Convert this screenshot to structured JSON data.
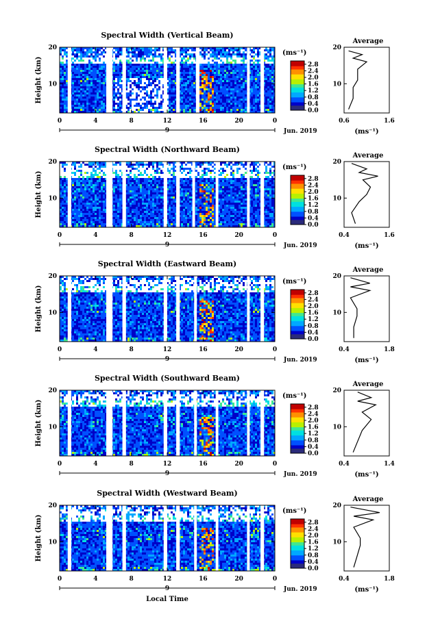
{
  "chart_data": [
    {
      "type": "heatmap",
      "title": "Spectral Width (Vertical Beam)",
      "profile_title": "Average",
      "profile_xticks": [
        "0.6",
        "1.6"
      ],
      "profile_xlim": [
        0.6,
        1.6
      ],
      "profile": [
        [
          0.7,
          3
        ],
        [
          0.8,
          6
        ],
        [
          0.8,
          9
        ],
        [
          0.9,
          11
        ],
        [
          0.9,
          14
        ],
        [
          1.1,
          16
        ],
        [
          0.8,
          17
        ],
        [
          1.0,
          18
        ],
        [
          0.7,
          19
        ]
      ],
      "gaps": [
        [
          0.9,
          1.3
        ],
        [
          5.2,
          5.9
        ],
        [
          7.0,
          7.4
        ],
        [
          11.6,
          12.0
        ],
        [
          13.0,
          13.4
        ],
        [
          15.2,
          15.6
        ],
        [
          20.9,
          21.2
        ],
        [
          22.4,
          22.8
        ]
      ]
    },
    {
      "type": "heatmap",
      "title": "Spectral Width (Northward Beam)",
      "profile_title": "Average",
      "profile_xticks": [
        "0.4",
        "1.6"
      ],
      "profile_xlim": [
        0.4,
        1.6
      ],
      "profile": [
        [
          0.7,
          3
        ],
        [
          0.6,
          6
        ],
        [
          0.8,
          9
        ],
        [
          1.0,
          11
        ],
        [
          1.1,
          13
        ],
        [
          0.9,
          15
        ],
        [
          1.3,
          16
        ],
        [
          0.8,
          17
        ],
        [
          1.0,
          18
        ],
        [
          0.6,
          19.5
        ]
      ],
      "gaps": [
        [
          0.9,
          1.3
        ],
        [
          5.2,
          5.9
        ],
        [
          7.0,
          7.4
        ],
        [
          11.6,
          12.0
        ],
        [
          13.0,
          13.4
        ],
        [
          14.8,
          15.1
        ],
        [
          17.4,
          17.7
        ],
        [
          20.9,
          21.2
        ],
        [
          22.4,
          22.8
        ]
      ]
    },
    {
      "type": "heatmap",
      "title": "Spectral Width (Eastward Beam)",
      "profile_title": "Average",
      "profile_xticks": [
        "0.4",
        "1.8"
      ],
      "profile_xlim": [
        0.4,
        1.8
      ],
      "profile": [
        [
          0.7,
          3
        ],
        [
          0.7,
          6
        ],
        [
          0.8,
          9
        ],
        [
          0.8,
          11
        ],
        [
          0.6,
          14
        ],
        [
          1.2,
          16
        ],
        [
          0.6,
          17
        ],
        [
          1.2,
          18
        ],
        [
          0.6,
          19.5
        ]
      ],
      "gaps": [
        [
          0.9,
          1.3
        ],
        [
          5.2,
          5.9
        ],
        [
          7.0,
          7.4
        ],
        [
          11.6,
          12.0
        ],
        [
          13.0,
          13.4
        ],
        [
          15.0,
          15.3
        ],
        [
          20.9,
          21.2
        ],
        [
          22.4,
          22.8
        ]
      ]
    },
    {
      "type": "heatmap",
      "title": "Spectral Width (Southward Beam)",
      "profile_title": "Average",
      "profile_xticks": [
        "0.4",
        "1.4"
      ],
      "profile_xlim": [
        0.4,
        1.4
      ],
      "profile": [
        [
          0.6,
          3
        ],
        [
          0.7,
          6
        ],
        [
          0.8,
          9
        ],
        [
          1.0,
          12
        ],
        [
          0.8,
          14
        ],
        [
          1.1,
          16
        ],
        [
          0.7,
          17
        ],
        [
          1.0,
          18
        ],
        [
          0.7,
          19.5
        ]
      ],
      "gaps": [
        [
          0.9,
          1.3
        ],
        [
          5.2,
          5.9
        ],
        [
          7.0,
          7.4
        ],
        [
          11.6,
          12.0
        ],
        [
          13.0,
          13.4
        ],
        [
          15.0,
          15.3
        ],
        [
          17.4,
          17.7
        ],
        [
          20.9,
          21.2
        ],
        [
          22.4,
          22.8
        ]
      ]
    },
    {
      "type": "heatmap",
      "title": "Spectral Width (Westward Beam)",
      "profile_title": "Average",
      "profile_xticks": [
        "0.4",
        "1.8"
      ],
      "profile_xlim": [
        0.4,
        1.8
      ],
      "profile": [
        [
          0.7,
          3
        ],
        [
          0.8,
          6
        ],
        [
          0.9,
          9
        ],
        [
          0.9,
          11
        ],
        [
          0.7,
          14
        ],
        [
          1.3,
          16
        ],
        [
          0.7,
          17
        ],
        [
          1.5,
          18
        ],
        [
          0.6,
          19.5
        ]
      ],
      "gaps": [
        [
          0.9,
          1.3
        ],
        [
          5.2,
          5.9
        ],
        [
          7.0,
          7.4
        ],
        [
          11.6,
          12.0
        ],
        [
          13.0,
          13.4
        ],
        [
          15.0,
          15.3
        ],
        [
          17.4,
          17.7
        ],
        [
          20.9,
          21.2
        ],
        [
          22.4,
          22.8
        ]
      ]
    }
  ],
  "common": {
    "ylabel": "Height (km)",
    "yticks": [
      "20",
      "10"
    ],
    "ylim": [
      2,
      20
    ],
    "xticks": [
      "0",
      "4",
      "8",
      "12",
      "16",
      "20",
      "0"
    ],
    "xlim": [
      0,
      24
    ],
    "day_label": "9",
    "month_label": "Jun. 2019",
    "colorbar_unit": "(ms⁻¹)",
    "colorbar_ticks": [
      "2.8",
      "2.4",
      "2.0",
      "1.6",
      "1.2",
      "0.8",
      "0.4",
      "0.0"
    ],
    "colorbar_range": [
      0,
      3.0
    ],
    "profile_unit": "(ms⁻¹)",
    "xlabel": "Local Time",
    "colorscale": [
      "#2b2b7a",
      "#0000c8",
      "#0050ff",
      "#00a8ff",
      "#00e0e0",
      "#40e890",
      "#b8f000",
      "#ffe000",
      "#ff9000",
      "#ff3000",
      "#c00000"
    ]
  }
}
